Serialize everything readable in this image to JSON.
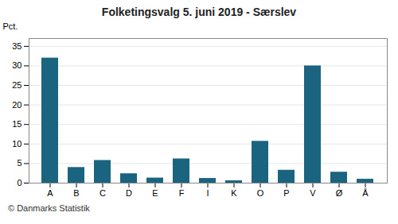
{
  "chart_data": {
    "type": "bar",
    "title": "Folketingsvalg 5. juni 2019 - Særslev",
    "categories": [
      "A",
      "B",
      "C",
      "D",
      "E",
      "F",
      "I",
      "K",
      "O",
      "P",
      "V",
      "Ø",
      "Å"
    ],
    "values": [
      32.0,
      4.0,
      5.8,
      2.4,
      1.3,
      6.2,
      1.2,
      0.6,
      10.7,
      3.3,
      30.0,
      2.8,
      1.0
    ],
    "color": "#1a6480",
    "ylabel": "Pct.",
    "ylim": [
      0,
      37
    ],
    "yticks": [
      0,
      5,
      10,
      15,
      20,
      25,
      30,
      35
    ],
    "grid": true,
    "annotations": [
      "© Danmarks Statistik"
    ]
  }
}
